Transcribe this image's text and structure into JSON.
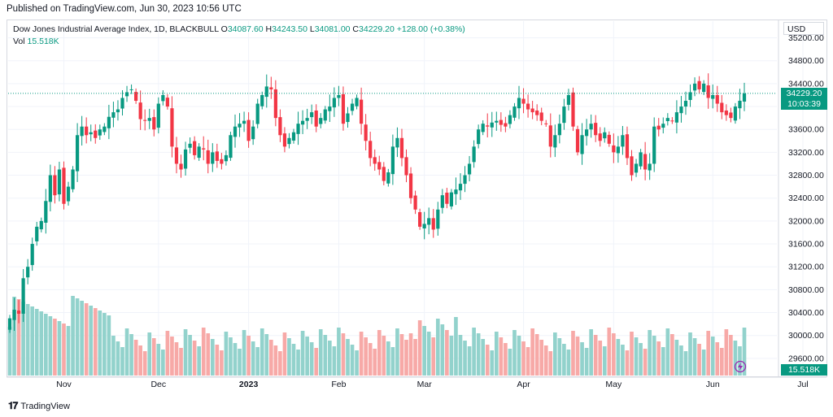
{
  "header": {
    "published": "Published on TradingView.com, Jun 30, 2023 10:56 UTC"
  },
  "legend": {
    "symbol": "Dow Jones Industrial Average Index, 1D, BLACKBULL",
    "o_label": "O",
    "o_value": "34087.60",
    "h_label": "H",
    "h_value": "34243.50",
    "l_label": "L",
    "l_value": "34081.00",
    "c_label": "C",
    "c_value": "34229.20",
    "change": "+128.00 (+0.38%)",
    "vol_label": "Vol",
    "vol_value": "15.518K"
  },
  "scale": {
    "currency": "USD"
  },
  "tags": {
    "price": "34229.20",
    "countdown": "10:03:39",
    "volume": "15.518K"
  },
  "footer": {
    "brand": "TradingView"
  },
  "colors": {
    "up": "#089981",
    "down": "#f23645",
    "vol_up": "#92d2cc",
    "vol_down": "#f7a9a7"
  },
  "chart_data": {
    "type": "candlestick",
    "title": "Dow Jones Industrial Average Index, 1D, BLACKBULL",
    "y_ticks": [
      29600,
      30000,
      30400,
      30800,
      31200,
      31600,
      32000,
      32400,
      32800,
      33200,
      33600,
      34000,
      34400,
      34800,
      35200
    ],
    "ylim": [
      29300,
      35350
    ],
    "x_ticks": [
      {
        "label": "Nov",
        "index": 12
      },
      {
        "label": "Dec",
        "index": 33
      },
      {
        "label": "2023",
        "index": 53
      },
      {
        "label": "Feb",
        "index": 73
      },
      {
        "label": "Mar",
        "index": 92
      },
      {
        "label": "Apr",
        "index": 114
      },
      {
        "label": "May",
        "index": 134
      },
      {
        "label": "Jun",
        "index": 156
      },
      {
        "label": "Jul",
        "index": 176
      }
    ],
    "last_price": 34229.2,
    "series": {
      "close": [
        30300,
        30450,
        30380,
        31000,
        31200,
        31600,
        31900,
        32000,
        32350,
        32800,
        32450,
        32900,
        32300,
        32600,
        32900,
        33500,
        33650,
        33500,
        33550,
        33450,
        33600,
        33650,
        33820,
        33900,
        33950,
        34150,
        34250,
        34300,
        34100,
        33780,
        33750,
        33800,
        33600,
        34050,
        34200,
        34000,
        33300,
        33000,
        32900,
        33250,
        33350,
        33150,
        33300,
        33250,
        33000,
        33200,
        33050,
        33000,
        33150,
        33500,
        33650,
        33700,
        33750,
        33400,
        33650,
        34050,
        34200,
        34350,
        34300,
        33800,
        33500,
        33300,
        33450,
        33550,
        33700,
        33750,
        33800,
        33900,
        33650,
        33800,
        33950,
        34000,
        34150,
        34200,
        33700,
        33880,
        34050,
        34150,
        33700,
        33400,
        33100,
        33000,
        32900,
        32700,
        32850,
        33300,
        33450,
        33100,
        32800,
        32400,
        32200,
        31900,
        31950,
        32050,
        31850,
        32200,
        32450,
        32300,
        32500,
        32550,
        32650,
        32800,
        33000,
        33300,
        33600,
        33700,
        33650,
        33720,
        33750,
        33680,
        33650,
        33850,
        34000,
        34150,
        34050,
        33950,
        33900,
        33850,
        33750,
        33700,
        33300,
        33500,
        33700,
        34000,
        34200,
        33650,
        33200,
        33500,
        33600,
        33700,
        33500,
        33400,
        33550,
        33350,
        33200,
        33300,
        33500,
        33100,
        32800,
        33000,
        33200,
        32900,
        33000,
        33650,
        33600,
        33700,
        33800,
        33750,
        33900,
        34000,
        34100,
        34250,
        34400,
        34300,
        34400,
        34150,
        34200,
        34050,
        33900,
        33850,
        33800,
        34000,
        34101,
        34229
      ]
    },
    "volume_range": [
      0,
      110
    ]
  }
}
